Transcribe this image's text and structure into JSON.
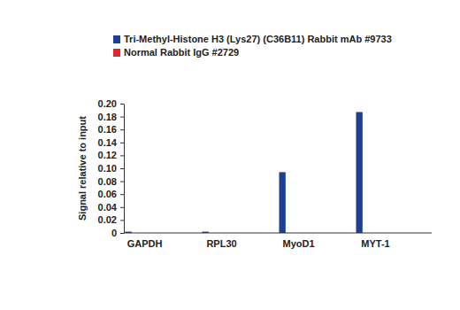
{
  "chart_data": {
    "type": "bar",
    "ylabel": "Signal relative to input",
    "categories": [
      "GAPDH",
      "RPL30",
      "MyoD1",
      "MYT-1"
    ],
    "series": [
      {
        "name": "Tri-Methyl-Histone H3 (Lys27) (C36B11) Rabbit mAb #9733",
        "color": "#1f3f96",
        "values": [
          0.002,
          0.002,
          0.094,
          0.187
        ]
      },
      {
        "name": "Normal Rabbit IgG #2729",
        "color": "#e3262b",
        "values": [
          0,
          0,
          0,
          0
        ]
      }
    ],
    "ylim": [
      0,
      0.2
    ],
    "yticks": [
      0,
      0.02,
      0.04,
      0.06,
      0.08,
      {
        "value": 0.1,
        "label": "0.10"
      },
      0.12,
      0.14,
      0.16,
      0.18,
      {
        "value": 0.2,
        "label": "0.20"
      }
    ],
    "grid": false,
    "legend": "top"
  }
}
